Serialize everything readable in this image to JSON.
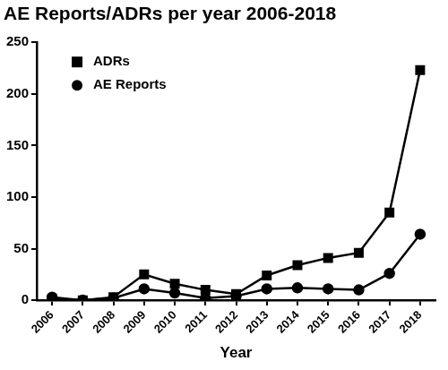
{
  "chart_data": {
    "type": "line",
    "title": "AE Reports/ADRs per year 2006-2018",
    "x_label": "Year",
    "categories": [
      "2006",
      "2007",
      "2008",
      "2009",
      "2010",
      "2011",
      "2012",
      "2013",
      "2014",
      "2015",
      "2016",
      "2017",
      "2018"
    ],
    "series": [
      {
        "name": "ADRs",
        "color": "#000000",
        "marker": "square",
        "values": [
          1,
          0,
          3,
          25,
          16,
          10,
          6,
          24,
          34,
          41,
          46,
          85,
          223
        ]
      },
      {
        "name": "AE Reports",
        "color": "#000000",
        "marker": "circle",
        "values": [
          3,
          0,
          2,
          11,
          7,
          2,
          4,
          11,
          12,
          11,
          10,
          26,
          64
        ]
      }
    ],
    "ylim": [
      0,
      250
    ],
    "yticks": [
      0,
      50,
      100,
      150,
      200,
      250
    ],
    "grid": false,
    "legend": "upper left"
  }
}
